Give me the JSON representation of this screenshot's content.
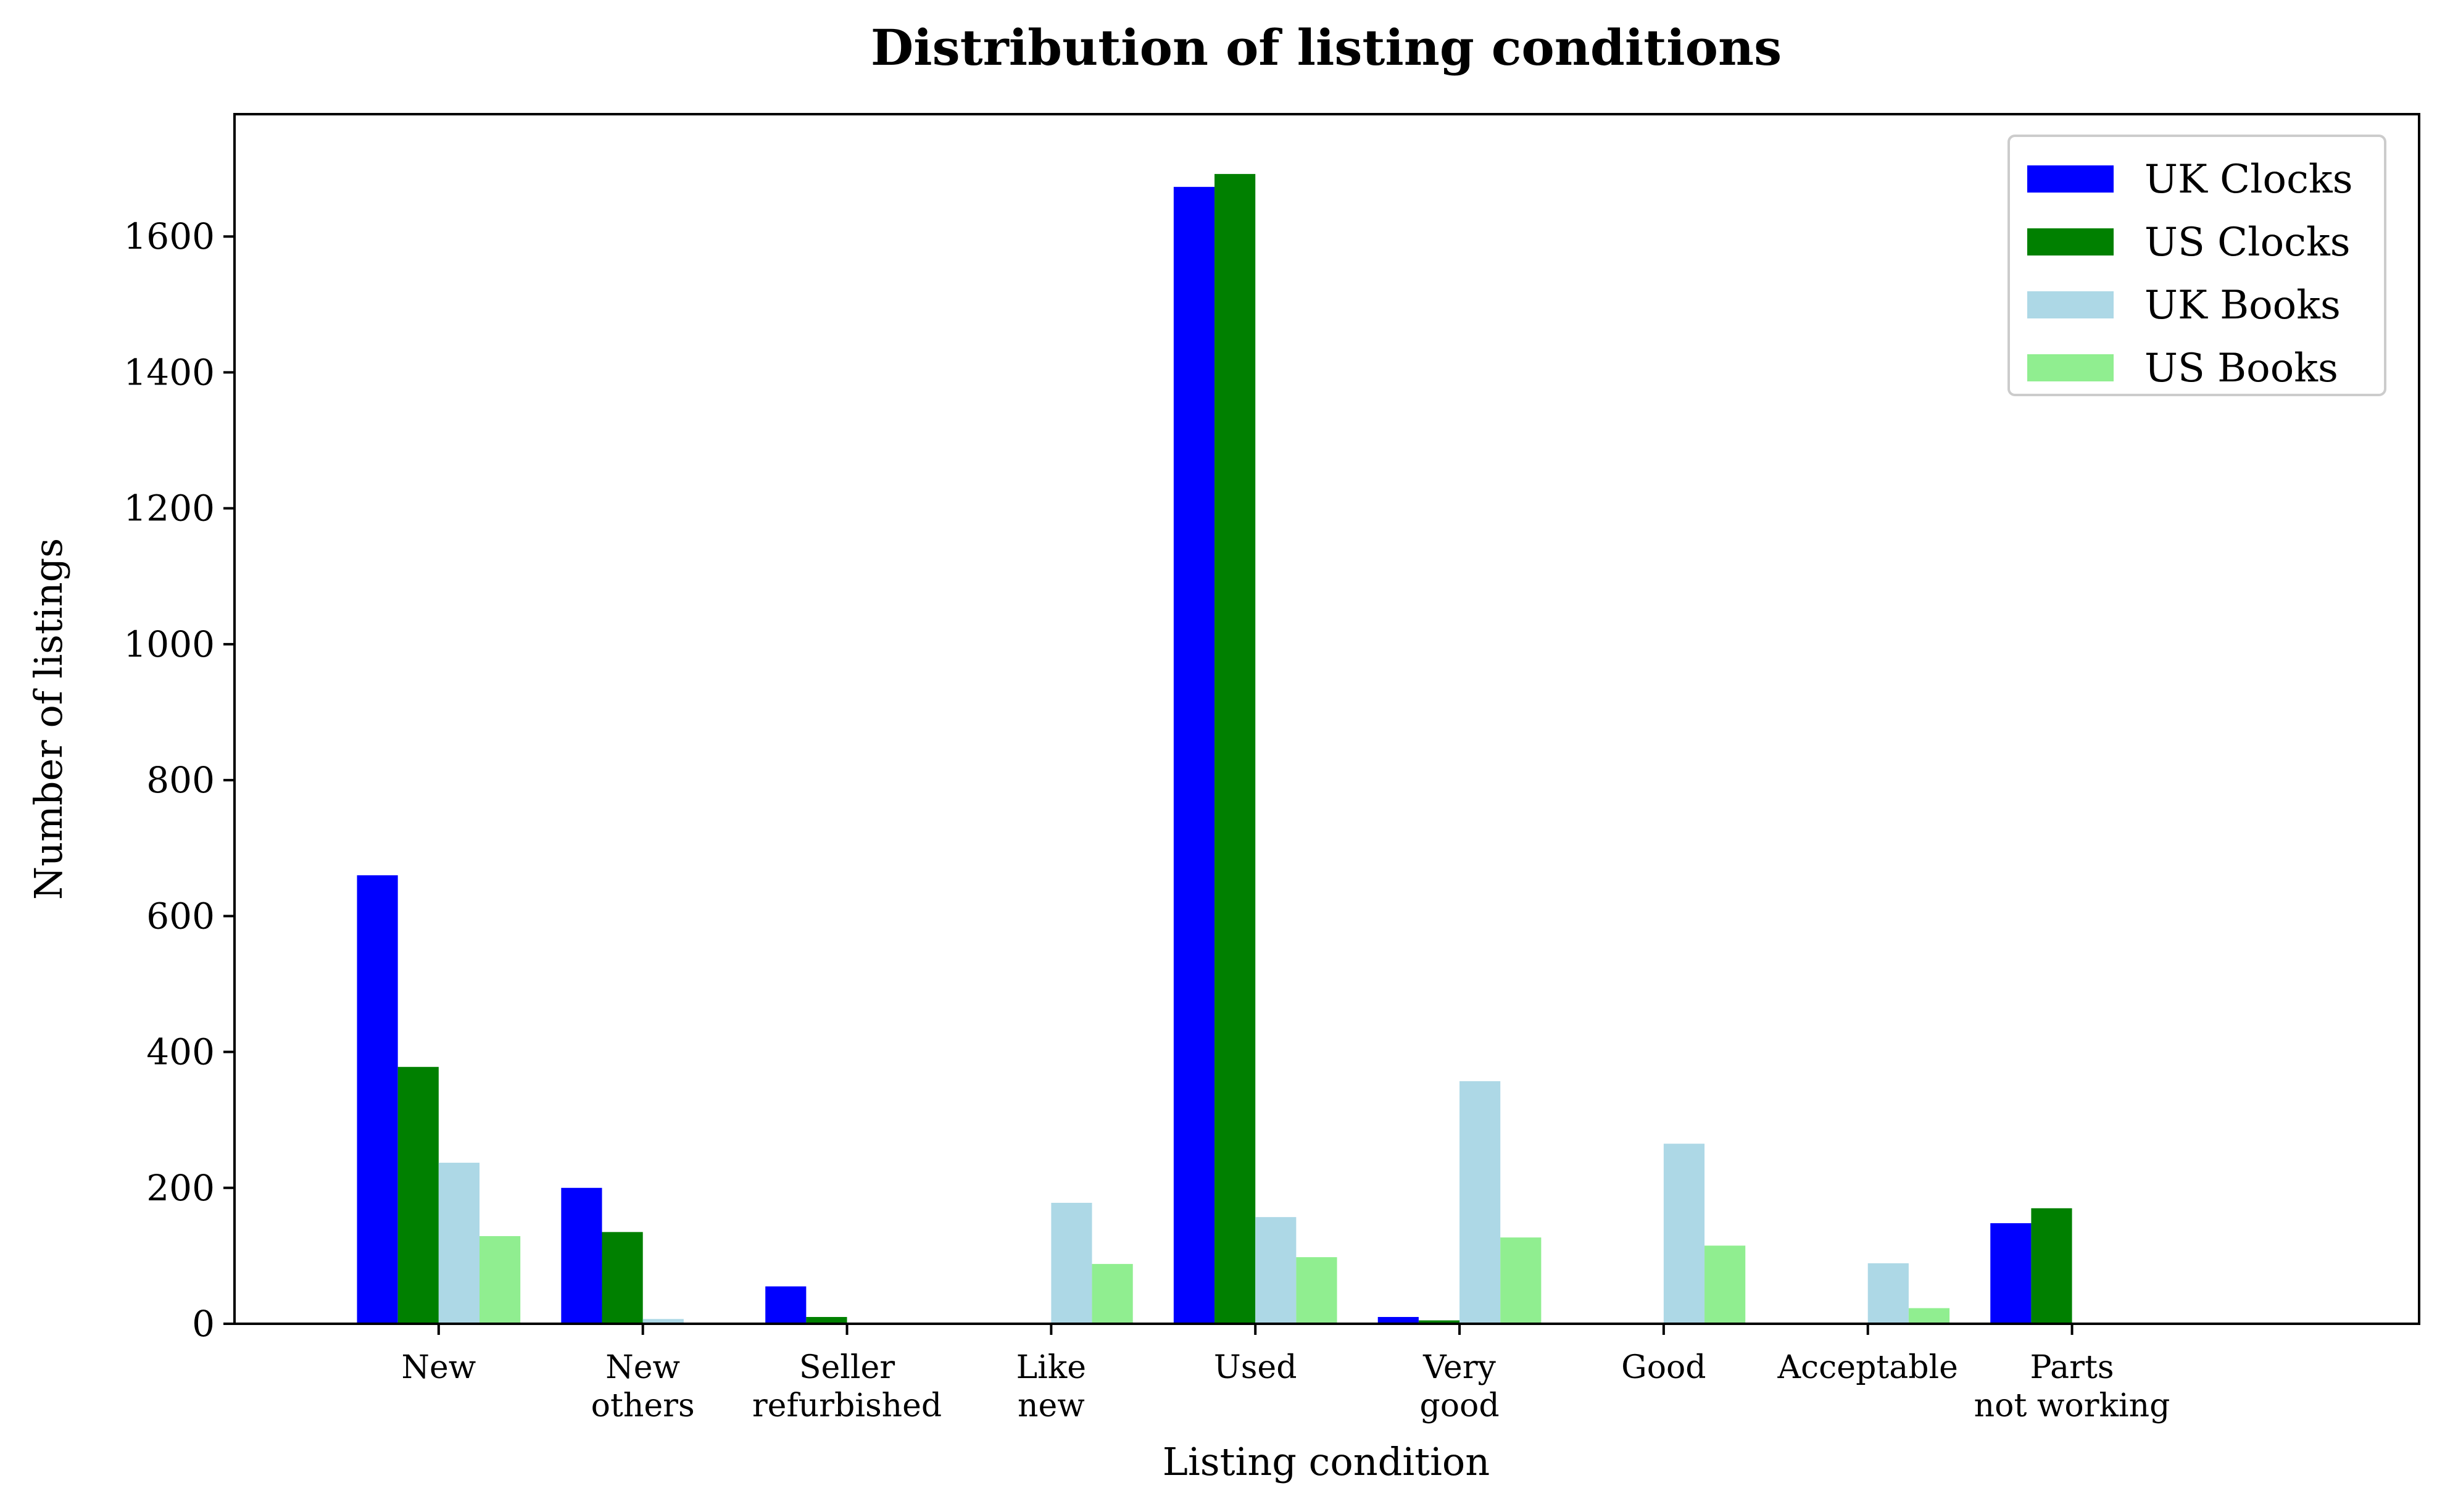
{
  "chart_data": {
    "type": "bar",
    "title": "Distribution of listing conditions",
    "xlabel": "Listing condition",
    "ylabel": "Number of listings",
    "categories": [
      [
        "New"
      ],
      [
        "New",
        "others"
      ],
      [
        "Seller",
        "refurbished"
      ],
      [
        "Like",
        "new"
      ],
      [
        "Used"
      ],
      [
        "Very",
        "good"
      ],
      [
        "Good"
      ],
      [
        "Acceptable"
      ],
      [
        "Parts",
        "not working"
      ]
    ],
    "series": [
      {
        "name": "UK Clocks",
        "color": "#0000ff",
        "values": [
          660,
          200,
          55,
          0,
          1673,
          10,
          0,
          0,
          148
        ]
      },
      {
        "name": "US Clocks",
        "color": "#008000",
        "values": [
          378,
          135,
          10,
          0,
          1692,
          5,
          0,
          0,
          170
        ]
      },
      {
        "name": "UK Books",
        "color": "#add8e6",
        "values": [
          237,
          7,
          0,
          178,
          157,
          357,
          265,
          89,
          0
        ]
      },
      {
        "name": "US Books",
        "color": "#90ee90",
        "values": [
          129,
          0,
          0,
          88,
          98,
          127,
          115,
          23,
          0
        ]
      }
    ],
    "ylim": [
      0,
      1780
    ],
    "yticks": [
      0,
      200,
      400,
      600,
      800,
      1000,
      1200,
      1400,
      1600
    ],
    "legend": "top-right",
    "grid": false
  }
}
